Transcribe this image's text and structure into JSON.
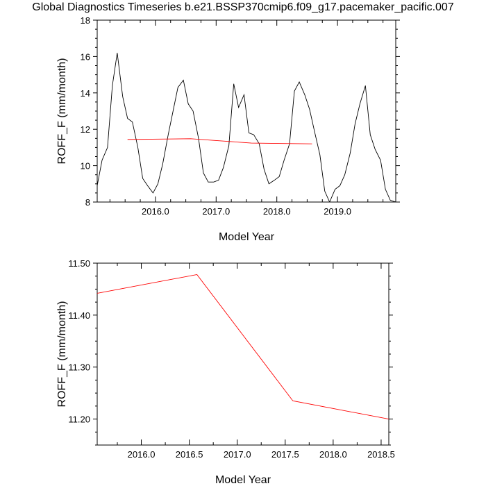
{
  "title": "Global Diagnostics Timeseries b.e21.BSSP370cmip6.f09_g17.pacemaker_pacific.007",
  "chart_data": [
    {
      "type": "line",
      "xlabel": "Model Year",
      "ylabel": "ROFF_F (mm/month)",
      "xlim": [
        2015.04,
        2019.96
      ],
      "ylim": [
        8,
        18
      ],
      "xticks": [
        2016.0,
        2017.0,
        2018.0,
        2019.0
      ],
      "xtick_labels": [
        "2016.0",
        "2017.0",
        "2018.0",
        "2019.0"
      ],
      "yticks": [
        8,
        10,
        12,
        14,
        16,
        18
      ],
      "ytick_labels": [
        "8",
        "10",
        "12",
        "14",
        "16",
        "18"
      ],
      "series": [
        {
          "color": "#000000",
          "x": [
            2015.04,
            2015.12,
            2015.21,
            2015.29,
            2015.37,
            2015.46,
            2015.54,
            2015.62,
            2015.71,
            2015.79,
            2015.87,
            2015.96,
            2016.04,
            2016.12,
            2016.21,
            2016.29,
            2016.37,
            2016.46,
            2016.54,
            2016.62,
            2016.71,
            2016.79,
            2016.87,
            2016.96,
            2017.04,
            2017.12,
            2017.21,
            2017.29,
            2017.37,
            2017.46,
            2017.54,
            2017.62,
            2017.71,
            2017.79,
            2017.87,
            2017.96,
            2018.04,
            2018.12,
            2018.21,
            2018.29,
            2018.37,
            2018.46,
            2018.54,
            2018.62,
            2018.71,
            2018.79,
            2018.87,
            2018.96,
            2019.04,
            2019.12,
            2019.21,
            2019.29,
            2019.37,
            2019.46,
            2019.54,
            2019.62,
            2019.71,
            2019.79,
            2019.87,
            2019.96
          ],
          "y": [
            8.9,
            10.3,
            11.0,
            14.4,
            16.2,
            13.8,
            12.6,
            12.4,
            11.0,
            9.3,
            8.9,
            8.5,
            9.0,
            10.1,
            11.7,
            13.0,
            14.3,
            14.7,
            13.4,
            13.0,
            11.5,
            9.6,
            9.1,
            9.1,
            9.2,
            9.9,
            11.1,
            14.5,
            13.2,
            13.9,
            11.8,
            11.7,
            11.2,
            9.8,
            9.0,
            9.2,
            9.4,
            10.3,
            11.2,
            14.1,
            14.6,
            13.9,
            13.1,
            11.9,
            10.6,
            8.6,
            8.0,
            8.7,
            8.9,
            9.5,
            10.7,
            12.3,
            13.4,
            14.4,
            11.7,
            10.9,
            10.3,
            8.7,
            8.1,
            8.0
          ]
        },
        {
          "color": "#ff0000",
          "x": [
            2015.54,
            2016.58,
            2017.58,
            2018.58
          ],
          "y": [
            11.44,
            11.48,
            11.24,
            11.2
          ]
        }
      ]
    },
    {
      "type": "line",
      "xlabel": "Model Year",
      "ylabel": "ROFF_F (mm/month)",
      "xlim": [
        2015.54,
        2018.58
      ],
      "ylim": [
        11.15,
        11.5
      ],
      "xticks": [
        2016.0,
        2016.5,
        2017.0,
        2017.5,
        2018.0,
        2018.5
      ],
      "xtick_labels": [
        "2016.0",
        "2016.5",
        "2017.0",
        "2017.5",
        "2018.0",
        "2018.5"
      ],
      "yticks": [
        11.2,
        11.3,
        11.4,
        11.5
      ],
      "ytick_labels": [
        "11.20",
        "11.30",
        "11.40",
        "11.50"
      ],
      "series": [
        {
          "color": "#ff0000",
          "x": [
            2015.54,
            2016.58,
            2017.58,
            2018.58
          ],
          "y": [
            11.442,
            11.478,
            11.235,
            11.2
          ]
        }
      ]
    }
  ]
}
